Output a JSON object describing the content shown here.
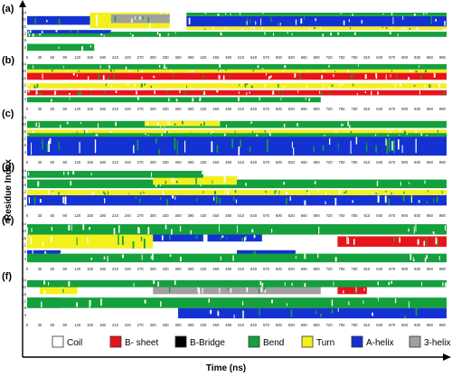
{
  "chart_data": {
    "type": "heatmap",
    "xlabel": "Time (ns)",
    "ylabel": "Residue Index",
    "x_ticks": [
      0,
      30,
      60,
      90,
      120,
      150,
      180,
      210,
      240,
      270,
      300,
      330,
      360,
      390,
      420,
      450,
      480,
      510,
      540,
      570,
      600,
      630,
      660,
      690,
      720,
      750,
      780,
      810,
      840,
      870,
      900,
      930,
      960,
      990
    ],
    "y_ticks": [
      4,
      8,
      12,
      16,
      20,
      24
    ],
    "residues": 24,
    "xlim": [
      0,
      1000
    ],
    "states": [
      {
        "name": "Coil",
        "color": "#ffffff"
      },
      {
        "name": "B- sheet",
        "color": "#e8141c"
      },
      {
        "name": "B-Bridge",
        "color": "#000000"
      },
      {
        "name": "Bend",
        "color": "#14a03c"
      },
      {
        "name": "Turn",
        "color": "#f3f01e"
      },
      {
        "name": "A-helix",
        "color": "#1432d2"
      },
      {
        "name": "3-helix",
        "color": "#a0a0a0"
      }
    ],
    "panels": [
      {
        "label": "(a)",
        "segments": [
          {
            "state": "A-helix",
            "res": [
              16,
              22
            ],
            "t": [
              380,
              1000
            ]
          },
          {
            "state": "A-helix",
            "res": [
              17,
              22
            ],
            "t": [
              0,
              150
            ]
          },
          {
            "state": "Turn",
            "res": [
              15,
              24
            ],
            "t": [
              150,
              340
            ]
          },
          {
            "state": "3-helix",
            "res": [
              18,
              23
            ],
            "t": [
              200,
              340
            ]
          },
          {
            "state": "Bend",
            "res": [
              10,
              13
            ],
            "t": [
              0,
              1000
            ]
          },
          {
            "state": "Bend",
            "res": [
              22,
              24
            ],
            "t": [
              380,
              1000
            ]
          },
          {
            "state": "Turn",
            "res": [
              14,
              16
            ],
            "t": [
              380,
              1000
            ]
          },
          {
            "state": "A-helix",
            "res": [
              12,
              14
            ],
            "t": [
              0,
              200
            ]
          },
          {
            "state": "Bend",
            "res": [
              2,
              6
            ],
            "t": [
              0,
              160
            ]
          }
        ]
      },
      {
        "label": "(b)",
        "segments": [
          {
            "state": "B- sheet",
            "res": [
              15,
              19
            ],
            "t": [
              0,
              1000
            ]
          },
          {
            "state": "B- sheet",
            "res": [
              6,
              9
            ],
            "t": [
              0,
              1000
            ]
          },
          {
            "state": "Turn",
            "res": [
              19,
              21
            ],
            "t": [
              0,
              1000
            ]
          },
          {
            "state": "Turn",
            "res": [
              10,
              13
            ],
            "t": [
              0,
              1000
            ]
          },
          {
            "state": "Bend",
            "res": [
              21,
              24
            ],
            "t": [
              0,
              1000
            ]
          },
          {
            "state": "Bend",
            "res": [
              2,
              5
            ],
            "t": [
              0,
              700
            ]
          }
        ]
      },
      {
        "label": "(c)",
        "segments": [
          {
            "state": "A-helix",
            "res": [
              2,
              13
            ],
            "t": [
              0,
              1000
            ]
          },
          {
            "state": "Turn",
            "res": [
              14,
              17
            ],
            "t": [
              0,
              1000
            ]
          },
          {
            "state": "Bend",
            "res": [
              18,
              22
            ],
            "t": [
              0,
              1000
            ]
          },
          {
            "state": "Turn",
            "res": [
              19,
              22
            ],
            "t": [
              280,
              460
            ]
          },
          {
            "state": "Bend",
            "res": [
              13,
              15
            ],
            "t": [
              0,
              1000
            ]
          }
        ]
      },
      {
        "label": "(d)",
        "segments": [
          {
            "state": "A-helix",
            "res": [
              4,
              10
            ],
            "t": [
              0,
              1000
            ]
          },
          {
            "state": "Turn",
            "res": [
              10,
              13
            ],
            "t": [
              0,
              1000
            ]
          },
          {
            "state": "Bend",
            "res": [
              14,
              19
            ],
            "t": [
              0,
              1000
            ]
          },
          {
            "state": "Turn",
            "res": [
              16,
              21
            ],
            "t": [
              300,
              500
            ]
          },
          {
            "state": "Bend",
            "res": [
              20,
              24
            ],
            "t": [
              0,
              420
            ]
          }
        ]
      },
      {
        "label": "(e)",
        "segments": [
          {
            "state": "B- sheet",
            "res": [
              11,
              17
            ],
            "t": [
              740,
              1000
            ]
          },
          {
            "state": "B- sheet",
            "res": [
              14,
              17
            ],
            "t": [
              90,
              260
            ]
          },
          {
            "state": "Turn",
            "res": [
              10,
              18
            ],
            "t": [
              0,
              300
            ]
          },
          {
            "state": "A-helix",
            "res": [
              14,
              18
            ],
            "t": [
              300,
              420
            ]
          },
          {
            "state": "A-helix",
            "res": [
              14,
              18
            ],
            "t": [
              430,
              560
            ]
          },
          {
            "state": "A-helix",
            "res": [
              5,
              9
            ],
            "t": [
              500,
              640
            ]
          },
          {
            "state": "A-helix",
            "res": [
              5,
              9
            ],
            "t": [
              0,
              80
            ]
          },
          {
            "state": "Bend",
            "res": [
              18,
              24
            ],
            "t": [
              0,
              1000
            ]
          },
          {
            "state": "Bend",
            "res": [
              2,
              7
            ],
            "t": [
              0,
              1000
            ]
          }
        ]
      },
      {
        "label": "(f)",
        "segments": [
          {
            "state": "3-helix",
            "res": [
              16,
              21
            ],
            "t": [
              300,
              700
            ]
          },
          {
            "state": "Turn",
            "res": [
              16,
              22
            ],
            "t": [
              30,
              120
            ]
          },
          {
            "state": "B- sheet",
            "res": [
              16,
              21
            ],
            "t": [
              740,
              810
            ]
          },
          {
            "state": "A-helix",
            "res": [
              2,
              8
            ],
            "t": [
              360,
              1000
            ]
          },
          {
            "state": "A-helix",
            "res": [
              8,
              14
            ],
            "t": [
              0,
              80
            ]
          },
          {
            "state": "Bend",
            "res": [
              8,
              14
            ],
            "t": [
              0,
              1000
            ]
          },
          {
            "state": "Bend",
            "res": [
              20,
              24
            ],
            "t": [
              0,
              1000
            ]
          }
        ]
      }
    ]
  }
}
